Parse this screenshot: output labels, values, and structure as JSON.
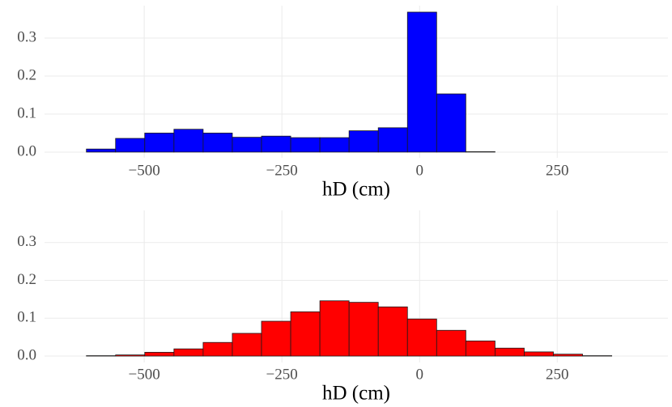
{
  "chart_data": [
    {
      "type": "histogram",
      "color": "#0000ff",
      "xlabel": "hD (cm)",
      "grid": true,
      "bins": [
        -658,
        -605,
        -552,
        -499,
        -446,
        -393,
        -340,
        -287,
        -234,
        -181,
        -128,
        -75,
        -22,
        31,
        84,
        137,
        190,
        243,
        296,
        349,
        402
      ],
      "values": [
        0,
        0.008,
        0.036,
        0.05,
        0.06,
        0.05,
        0.039,
        0.042,
        0.038,
        0.038,
        0.056,
        0.064,
        0.368,
        0.153,
        0.001,
        0,
        0,
        0,
        0,
        0
      ],
      "xlim": [
        -681,
        451
      ],
      "ylim": [
        -0.015,
        0.385
      ],
      "xticks": [
        {
          "value": -500,
          "label": "−500"
        },
        {
          "value": -250,
          "label": "−250"
        },
        0,
        250
      ],
      "yticks": [
        {
          "value": 0,
          "label": "0.0"
        },
        0.1,
        0.2,
        0.3
      ]
    },
    {
      "type": "histogram",
      "color": "#ff0000",
      "xlabel": "hD (cm)",
      "grid": true,
      "bins": [
        -658,
        -605,
        -552,
        -499,
        -446,
        -393,
        -340,
        -287,
        -234,
        -181,
        -128,
        -75,
        -22,
        31,
        84,
        137,
        190,
        243,
        296,
        349,
        402
      ],
      "values": [
        0,
        0.001,
        0.003,
        0.01,
        0.019,
        0.036,
        0.06,
        0.092,
        0.117,
        0.146,
        0.142,
        0.13,
        0.098,
        0.068,
        0.04,
        0.021,
        0.011,
        0.005,
        0.001,
        0
      ],
      "xlim": [
        -681,
        451
      ],
      "ylim": [
        -0.017,
        0.385
      ],
      "xticks": [
        {
          "value": -500,
          "label": "−500"
        },
        {
          "value": -250,
          "label": "−250"
        },
        0,
        250
      ],
      "yticks": [
        {
          "value": 0,
          "label": "0.0"
        },
        0.1,
        0.2,
        0.3
      ]
    }
  ]
}
